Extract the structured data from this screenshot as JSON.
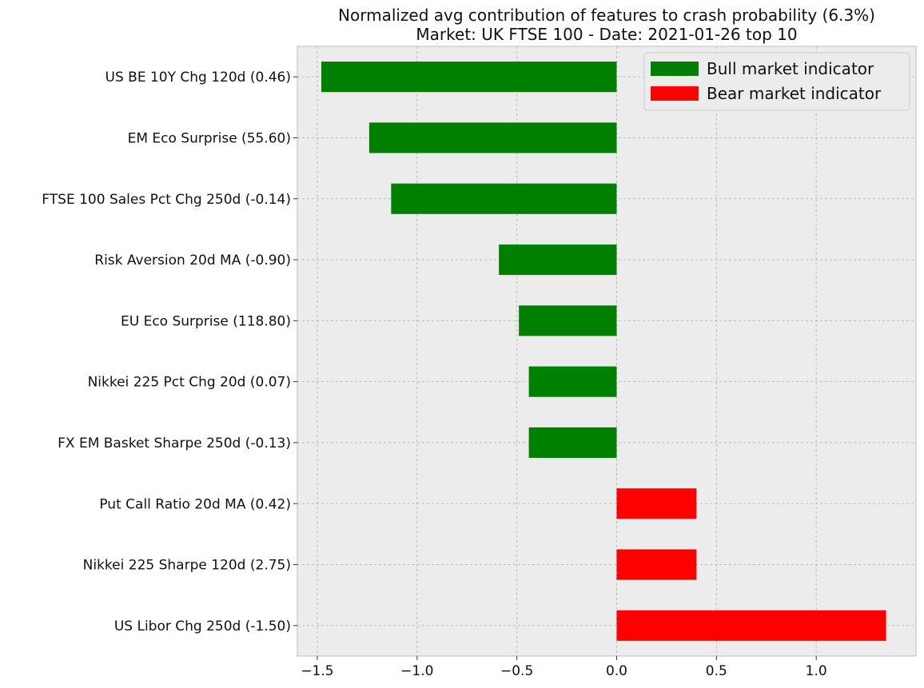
{
  "chart_data": {
    "type": "bar",
    "orientation": "horizontal",
    "title": "Normalized avg contribution of features to crash probability (6.3%)",
    "subtitle": "Market: UK FTSE 100 - Date: 2021-01-26  top 10",
    "xlabel": "",
    "ylabel": "",
    "xlim": [
      -1.6,
      1.5
    ],
    "xticks": [
      -1.5,
      -1.0,
      -0.5,
      0.0,
      0.5,
      1.0
    ],
    "xtick_labels": [
      "−1.5",
      "−1.0",
      "−0.5",
      "0.0",
      "0.5",
      "1.0"
    ],
    "grid": true,
    "legend_position": "top-right",
    "colors": {
      "bull": "#008000",
      "bear": "#ff0000",
      "plot_bg": "#ececec"
    },
    "legend": [
      {
        "label": "Bull market indicator",
        "color": "#008000"
      },
      {
        "label": "Bear market indicator",
        "color": "#ff0000"
      }
    ],
    "categories": [
      "US BE 10Y Chg 120d (0.46)",
      "EM Eco Surprise (55.60)",
      "FTSE 100 Sales Pct Chg 250d (-0.14)",
      "Risk Aversion 20d MA (-0.90)",
      "EU Eco Surprise (118.80)",
      "Nikkei 225 Pct Chg 20d (0.07)",
      "FX EM Basket Sharpe 250d (-0.13)",
      "Put Call Ratio 20d MA (0.42)",
      "Nikkei 225 Sharpe 120d (2.75)",
      "US Libor Chg 250d (-1.50)"
    ],
    "values": [
      -1.48,
      -1.24,
      -1.13,
      -0.59,
      -0.49,
      -0.44,
      -0.44,
      0.4,
      0.4,
      1.35
    ]
  }
}
